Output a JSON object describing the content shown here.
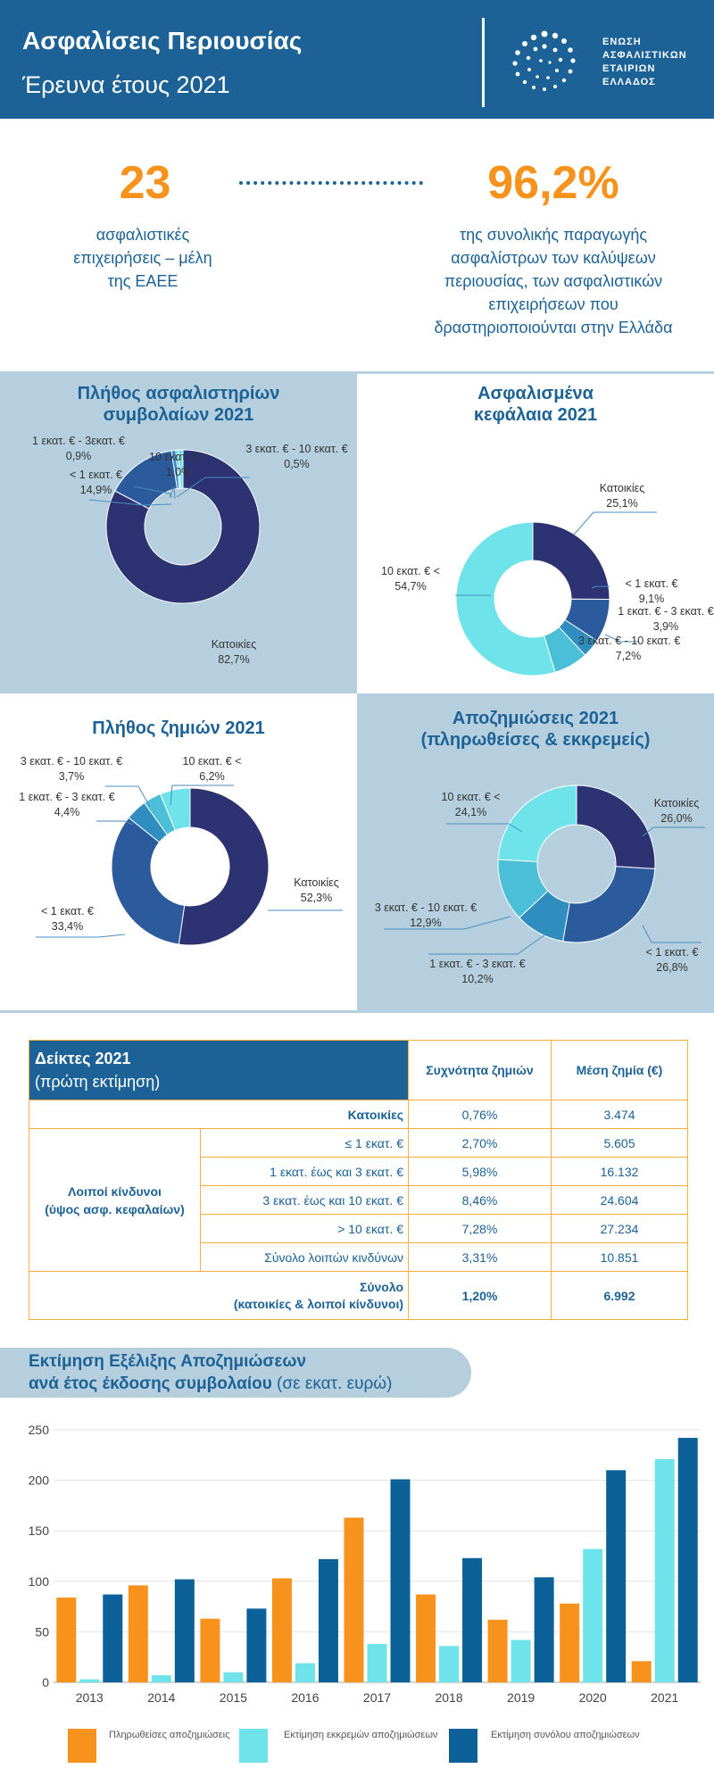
{
  "header": {
    "title": "Ασφαλίσεις Περιουσίας",
    "subtitle": "Έρευνα έτους 2021",
    "org_lines": [
      "ΕΝΩΣΗ",
      "ΑΣΦΑΛΙΣΤΙΚΩΝ",
      "ΕΤΑΙΡΙΩΝ",
      "ΕΛΛΑΔΟΣ"
    ]
  },
  "stats": {
    "left_number": "23",
    "left_text": [
      "ασφαλιστικές",
      "επιχειρήσεις – μέλη",
      "της ΕΑΕΕ"
    ],
    "right_number": "96,2%",
    "right_text": [
      "της συνολικής παραγωγής",
      "ασφαλίστρων των καλύψεων",
      "περιουσίας, των ασφαλιστικών",
      "επιχειρήσεων που",
      "δραστηριοποιούνται στην Ελλάδα"
    ]
  },
  "colors": {
    "navy": "#2d3272",
    "blue": "#2b5b9c",
    "mid": "#2f8dc0",
    "lightblue": "#4bbfd8",
    "cyan": "#6ee3ea",
    "orange": "#f7931d",
    "darkblue": "#0b6198",
    "brand": "#1c6296"
  },
  "chart_data": [
    {
      "type": "pie",
      "title": "Πλήθος ασφαλιστηρίων συμβολαίων 2021",
      "slices": [
        {
          "label": "Κατοικίες",
          "value": 82.7,
          "value_text": "82,7%",
          "color": "#2d3272"
        },
        {
          "label": "< 1 εκατ. €",
          "value": 14.9,
          "value_text": "14,9%",
          "color": "#2b5b9c"
        },
        {
          "label": "1 εκατ. € - 3εκατ. €",
          "value": 0.9,
          "value_text": "0,9%",
          "color": "#2f8dc0"
        },
        {
          "label": "3 εκατ. € - 10 εκατ. €",
          "value": 0.5,
          "value_text": "0,5%",
          "color": "#4bbfd8"
        },
        {
          "label": "10 εκατ. €  <",
          "value": 1.0,
          "value_text": "1,0%",
          "color": "#6ee3ea"
        }
      ]
    },
    {
      "type": "pie",
      "title": "Ασφαλισμένα κεφάλαια 2021",
      "slices": [
        {
          "label": "Κατοικίες",
          "value": 25.1,
          "value_text": "25,1%",
          "color": "#2d3272"
        },
        {
          "label": "< 1 εκατ. €",
          "value": 9.1,
          "value_text": "9,1%",
          "color": "#2b5b9c"
        },
        {
          "label": "1 εκατ. € - 3 εκατ. €",
          "value": 3.9,
          "value_text": "3,9%",
          "color": "#2f8dc0"
        },
        {
          "label": "3 εκατ. € - 10 εκατ. €",
          "value": 7.2,
          "value_text": "7,2%",
          "color": "#4bbfd8"
        },
        {
          "label": "10 εκατ. €  <",
          "value": 54.7,
          "value_text": "54,7%",
          "color": "#6ee3ea"
        }
      ]
    },
    {
      "type": "pie",
      "title": "Πλήθος ζημιών 2021",
      "slices": [
        {
          "label": "Κατοικίες",
          "value": 52.3,
          "value_text": "52,3%",
          "color": "#2d3272"
        },
        {
          "label": "< 1 εκατ. €",
          "value": 33.4,
          "value_text": "33,4%",
          "color": "#2b5b9c"
        },
        {
          "label": "1 εκατ. € - 3 εκατ. €",
          "value": 4.4,
          "value_text": "4,4%",
          "color": "#2f8dc0"
        },
        {
          "label": "3 εκατ. € - 10 εκατ. €",
          "value": 3.7,
          "value_text": "3,7%",
          "color": "#4bbfd8"
        },
        {
          "label": "10 εκατ. €  <",
          "value": 6.2,
          "value_text": "6,2%",
          "color": "#6ee3ea"
        }
      ]
    },
    {
      "type": "pie",
      "title": "Αποζημιώσεις 2021 (πληρωθείσες & εκκρεμείς)",
      "slices": [
        {
          "label": "Κατοικίες",
          "value": 26.0,
          "value_text": "26,0%",
          "color": "#2d3272"
        },
        {
          "label": "< 1 εκατ. €",
          "value": 26.8,
          "value_text": "26,8%",
          "color": "#2b5b9c"
        },
        {
          "label": "1 εκατ. € - 3 εκατ. €",
          "value": 10.2,
          "value_text": "10,2%",
          "color": "#2f8dc0"
        },
        {
          "label": "3 εκατ. € - 10 εκατ. €",
          "value": 12.9,
          "value_text": "12,9%",
          "color": "#4bbfd8"
        },
        {
          "label": "10 εκατ. €  <",
          "value": 24.1,
          "value_text": "24,1%",
          "color": "#6ee3ea"
        }
      ]
    },
    {
      "type": "bar",
      "title": "Εκτίμηση Εξέλιξης Αποζημιώσεων ανά έτος έκδοσης συμβολαίου",
      "title_unit": "(σε εκατ. ευρώ)",
      "categories": [
        "2013",
        "2014",
        "2015",
        "2016",
        "2017",
        "2018",
        "2019",
        "2020",
        "2021"
      ],
      "series": [
        {
          "name": "Πληρωθείσες αποζημιώσεις",
          "color": "#f7931d",
          "values": [
            84,
            96,
            63,
            103,
            163,
            87,
            62,
            78,
            21
          ]
        },
        {
          "name": "Εκτίμηση εκκρεμών αποζημιώσεων",
          "color": "#6ee3ea",
          "values": [
            3,
            7,
            10,
            19,
            38,
            36,
            42,
            132,
            221
          ]
        },
        {
          "name": "Εκτίμηση συνόλου αποζημιώσεων",
          "color": "#0b6198",
          "values": [
            87,
            102,
            73,
            122,
            201,
            123,
            104,
            210,
            242
          ]
        }
      ],
      "ylim": [
        0,
        250
      ],
      "yticks": [
        0,
        50,
        100,
        150,
        200,
        250
      ],
      "grid": true
    }
  ],
  "table": {
    "title": "Δείκτες 2021",
    "subtitle": "(πρώτη εκτίμηση)",
    "col1": "Συχνότητα ζημιών",
    "col2": "Μέση ζημία (€)",
    "group_label": [
      "Λοιποί  κίνδυνοι",
      "(ύψος ασφ. κεφαλαίων)"
    ],
    "rows": [
      {
        "label": "Κατοικίες",
        "freq": "0,76%",
        "avg": "3.474"
      },
      {
        "label": "≤ 1 εκατ. €",
        "freq": "2,70%",
        "avg": "5.605"
      },
      {
        "label": "1 εκατ. έως και 3 εκατ. €",
        "freq": "5,98%",
        "avg": "16.132"
      },
      {
        "label": "3 εκατ. έως και 10 εκατ. €",
        "freq": "8,46%",
        "avg": "24.604"
      },
      {
        "label": "> 10 εκατ. €",
        "freq": "7,28%",
        "avg": "27.234"
      },
      {
        "label": "Σύνολο λοιπών κινδύνων",
        "freq": "3,31%",
        "avg": "10.851"
      }
    ],
    "total": {
      "label": [
        "Σύνολο",
        "(κατοικίες & λοιποί κίνδυνοι)"
      ],
      "freq": "1,20%",
      "avg": "6.992"
    }
  }
}
